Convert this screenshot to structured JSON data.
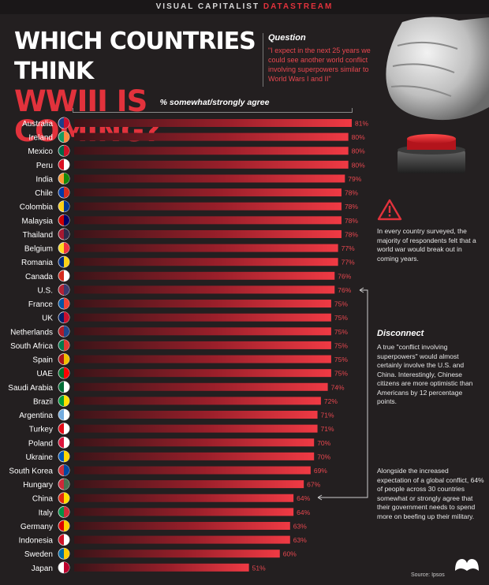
{
  "header": {
    "brand_main": "VISUAL CAPITALIST ",
    "brand_accent": "DATASTREAM"
  },
  "title": {
    "line1": "WHICH COUNTRIES THINK",
    "line2": "WWIII IS COMING?"
  },
  "question": {
    "label": "Question",
    "text": "\"I expect in the next 25 years we could see another world conflict involving superpowers similar to World Wars I and II\""
  },
  "annotations": {
    "note1": "In every country surveyed, the majority of respondents felt that a world war would break out in coming years.",
    "note2_heading": "Disconnect",
    "note2": "A true \"conflict involving superpowers\" would almost certainly involve the U.S. and China. Interestingly, Chinese citizens are more optimistic than Americans by 12 percentage points.",
    "note3": "Alongside the increased expectation of a global conflict, 64% of people across 30 countries somewhat or strongly agree that their government needs to spend more on beefing up their military."
  },
  "source": "Source: Ipsos",
  "colors": {
    "accent": "#e2323c",
    "background": "#231f20"
  },
  "chart_data": {
    "type": "bar",
    "orientation": "horizontal",
    "xlabel": "% somewhat/strongly agree",
    "xlim": [
      0,
      81
    ],
    "categories": [
      "Australia",
      "Ireland",
      "Mexico",
      "Peru",
      "India",
      "Chile",
      "Colombia",
      "Malaysia",
      "Thailand",
      "Belgium",
      "Romania",
      "Canada",
      "U.S.",
      "France",
      "UK",
      "Netherlands",
      "South Africa",
      "Spain",
      "UAE",
      "Saudi Arabia",
      "Brazil",
      "Argentina",
      "Turkey",
      "Poland",
      "Ukraine",
      "South Korea",
      "Hungary",
      "China",
      "Italy",
      "Germany",
      "Indonesia",
      "Sweden",
      "Japan"
    ],
    "values": [
      81,
      80,
      80,
      80,
      79,
      78,
      78,
      78,
      78,
      77,
      77,
      76,
      76,
      75,
      75,
      75,
      75,
      75,
      75,
      74,
      72,
      71,
      71,
      70,
      70,
      69,
      67,
      64,
      64,
      63,
      63,
      60,
      51
    ],
    "value_labels": [
      "81%",
      "80%",
      "80%",
      "80%",
      "79%",
      "78%",
      "78%",
      "78%",
      "78%",
      "77%",
      "77%",
      "76%",
      "76%",
      "75%",
      "75%",
      "75%",
      "75%",
      "75%",
      "75%",
      "74%",
      "72%",
      "71%",
      "71%",
      "70%",
      "70%",
      "69%",
      "67%",
      "64%",
      "64%",
      "63%",
      "63%",
      "60%",
      "51%"
    ]
  }
}
